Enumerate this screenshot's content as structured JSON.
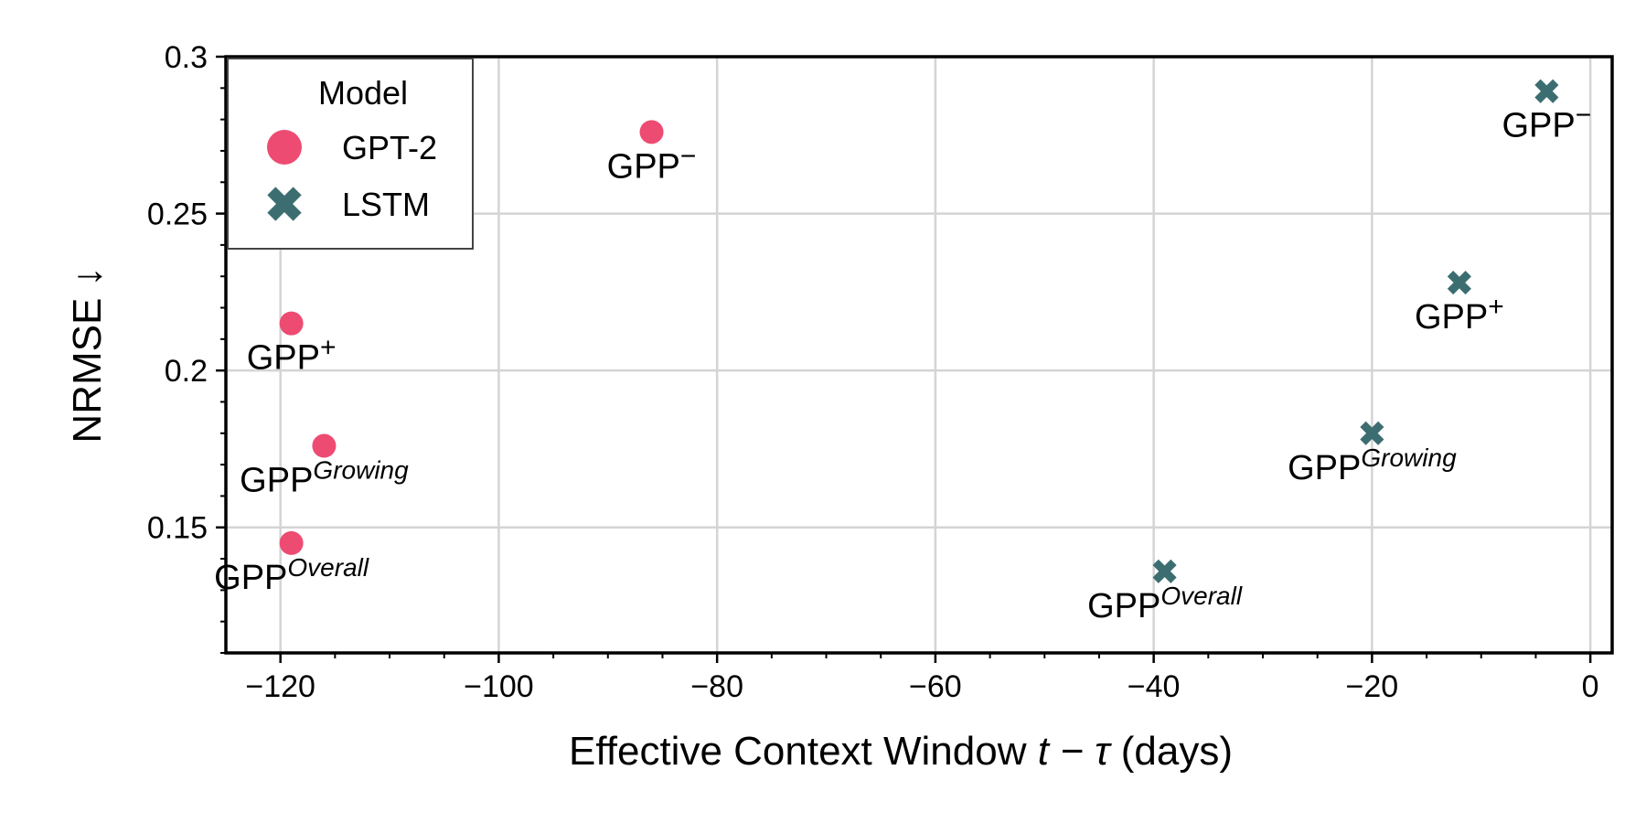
{
  "chart_data": {
    "type": "scatter",
    "xlabel": "Effective Context Window",
    "xlabel_math": "t − τ",
    "xlabel_unit": "(days)",
    "ylabel": "NRMSE ↓",
    "xlim": [
      -125,
      2
    ],
    "ylim": [
      0.11,
      0.3
    ],
    "x_ticks": [
      -120,
      -100,
      -80,
      -60,
      -40,
      -20,
      0
    ],
    "x_tick_labels": [
      "−120",
      "−100",
      "−80",
      "−60",
      "−40",
      "−20",
      "0"
    ],
    "y_ticks": [
      0.15,
      0.2,
      0.25,
      0.3
    ],
    "y_tick_labels": [
      "0.15",
      "0.2",
      "0.25",
      "0.3"
    ],
    "grid": true,
    "legend": {
      "title": "Model",
      "placement": "top-left",
      "entries": [
        {
          "name": "GPT-2",
          "marker": "circle",
          "color": "#ee4b72"
        },
        {
          "name": "LSTM",
          "marker": "x",
          "color": "#3c6e71"
        }
      ]
    },
    "series": [
      {
        "name": "GPT-2",
        "marker": "circle",
        "color": "#ee4b72",
        "points": [
          {
            "x": -86,
            "y": 0.276,
            "label": "GPP",
            "sup": "−",
            "sup_italic": false
          },
          {
            "x": -119,
            "y": 0.215,
            "label": "GPP",
            "sup": "+",
            "sup_italic": false
          },
          {
            "x": -116,
            "y": 0.176,
            "label": "GPP",
            "sup": "Growing",
            "sup_italic": true
          },
          {
            "x": -119,
            "y": 0.145,
            "label": "GPP",
            "sup": "Overall",
            "sup_italic": true
          }
        ]
      },
      {
        "name": "LSTM",
        "marker": "x",
        "color": "#3c6e71",
        "points": [
          {
            "x": -4,
            "y": 0.289,
            "label": "GPP",
            "sup": "−",
            "sup_italic": false
          },
          {
            "x": -12,
            "y": 0.228,
            "label": "GPP",
            "sup": "+",
            "sup_italic": false
          },
          {
            "x": -20,
            "y": 0.18,
            "label": "GPP",
            "sup": "Growing",
            "sup_italic": true
          },
          {
            "x": -39,
            "y": 0.136,
            "label": "GPP",
            "sup": "Overall",
            "sup_italic": true
          }
        ]
      }
    ]
  }
}
